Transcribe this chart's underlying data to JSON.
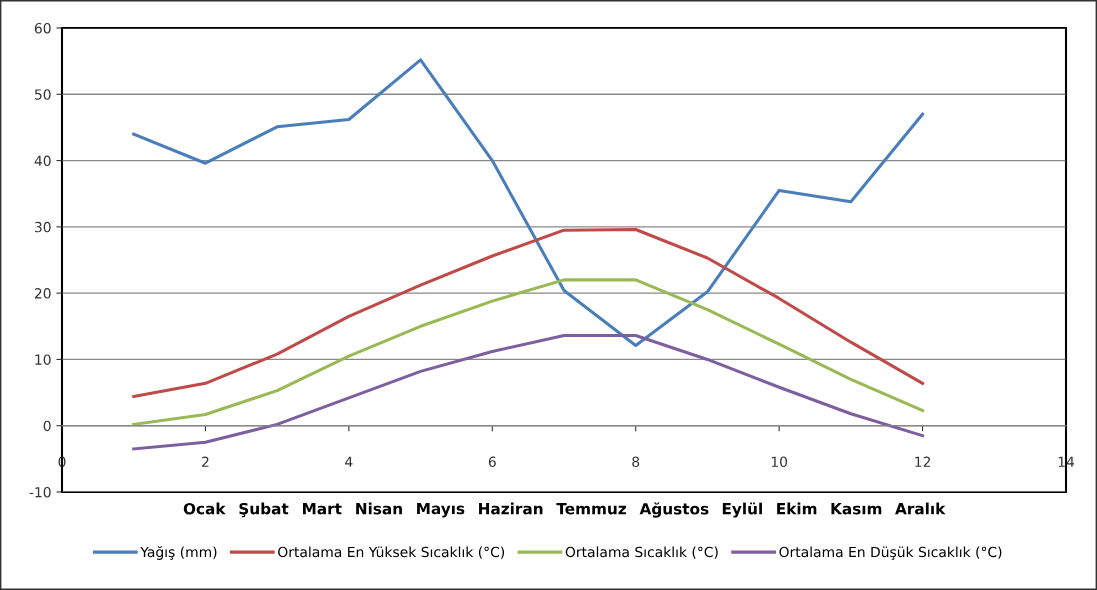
{
  "chart_data": {
    "type": "line",
    "x": [
      1,
      2,
      3,
      4,
      5,
      6,
      7,
      8,
      9,
      10,
      11,
      12
    ],
    "series": [
      {
        "name": "Yağış (mm)",
        "color": "#4a7ebb",
        "values": [
          44,
          39.6,
          45.1,
          46.2,
          55.2,
          40,
          20.4,
          12.1,
          20.2,
          35.5,
          33.8,
          47
        ]
      },
      {
        "name": "Ortalama En Yüksek Sıcaklık (°C)",
        "color": "#be4b48",
        "values": [
          4.4,
          6.4,
          10.8,
          16.5,
          21.2,
          25.6,
          29.5,
          29.6,
          25.3,
          19.2,
          12.6,
          6.4
        ]
      },
      {
        "name": "Ortalama Sıcaklık (°C)",
        "color": "#98b954",
        "values": [
          0.2,
          1.7,
          5.3,
          10.5,
          15,
          18.8,
          22,
          22,
          17.5,
          12.3,
          7,
          2.3
        ]
      },
      {
        "name": "Ortalama En Düşük Sıcaklık (°C)",
        "color": "#7d5fa0",
        "values": [
          -3.5,
          -2.5,
          0.2,
          4.2,
          8.2,
          11.2,
          13.6,
          13.6,
          10,
          5.8,
          1.8,
          -1.5
        ]
      }
    ],
    "xlim": [
      0,
      14
    ],
    "xticks": [
      0,
      2,
      4,
      6,
      8,
      10,
      12,
      14
    ],
    "ylim": [
      -10,
      60
    ],
    "yticks": [
      -10,
      0,
      10,
      20,
      30,
      40,
      50,
      60
    ],
    "grid": "y",
    "legend": "bottom",
    "marker": "none",
    "line_style": "solid",
    "annotations": [
      "Ocak",
      "Şubat",
      "Mart",
      "Nisan",
      "Mayıs",
      "Haziran",
      "Temmuz",
      "Ağustos",
      "Eylül",
      "Ekim",
      "Kasım",
      "Aralık"
    ]
  }
}
